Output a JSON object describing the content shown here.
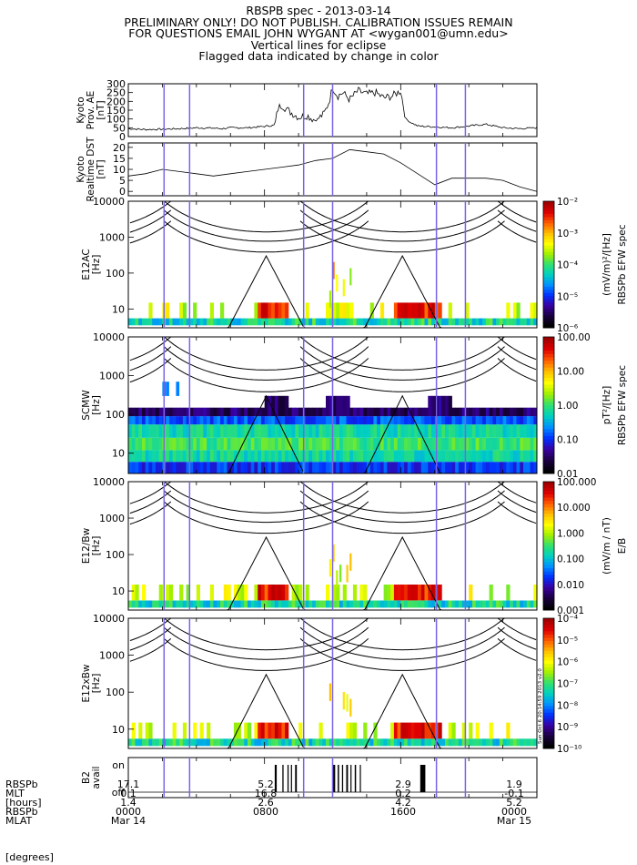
{
  "header": {
    "line1": "RBSPB spec - 2013-03-14",
    "line2": "PRELIMINARY ONLY! DO NOT PUBLISH. CALIBRATION ISSUES REMAIN",
    "line3": "FOR QUESTIONS EMAIL JOHN WYGANT AT <wygan001@umn.edu>",
    "line4": "Vertical lines for eclipse",
    "line5": "Flagged data indicated by change in color"
  },
  "colors": {
    "eclipse_line": "#7a64e6",
    "trace": "#000000",
    "colorbar_stops": [
      "#000000",
      "#1a0040",
      "#3a00a0",
      "#0030ff",
      "#0090ff",
      "#00d0c0",
      "#30e070",
      "#a0f000",
      "#ffff00",
      "#ffc000",
      "#ff6000",
      "#e00000",
      "#a00000"
    ]
  },
  "chart_data": [
    {
      "id": "ae",
      "type": "line",
      "ylabel": "Kyoto\nProv. AE\n[nT]",
      "ylim": [
        0,
        300
      ],
      "yticks": [
        "0",
        "50",
        "100",
        "150",
        "200",
        "250",
        "300"
      ],
      "x_hours": [
        0,
        1,
        2,
        3,
        4,
        5,
        5.5,
        6,
        7,
        8,
        8.6,
        8.8,
        9.0,
        9.5,
        10,
        10.5,
        11,
        11.5,
        11.8,
        12,
        12.3,
        12.6,
        13,
        13.5,
        14,
        14.5,
        15,
        15.5,
        16,
        16.3,
        16.6,
        17,
        18,
        19,
        20,
        21,
        22,
        23,
        24
      ],
      "values": [
        45,
        40,
        42,
        45,
        50,
        48,
        45,
        50,
        50,
        58,
        65,
        160,
        180,
        140,
        110,
        120,
        90,
        130,
        200,
        280,
        230,
        250,
        210,
        260,
        240,
        250,
        220,
        230,
        260,
        100,
        80,
        60,
        55,
        50,
        60,
        70,
        50,
        45,
        50
      ]
    },
    {
      "id": "dst",
      "type": "line",
      "ylabel": "Kyoto\nRealtime DST\n[nT]",
      "ylim": [
        -2,
        22
      ],
      "yticks": [
        "0",
        "5",
        "10",
        "15",
        "20"
      ],
      "x_hours": [
        0,
        1,
        2,
        3,
        4,
        5,
        6,
        7,
        8,
        9,
        10,
        11,
        12,
        13,
        14,
        15,
        16,
        17,
        18,
        19,
        20,
        21,
        22,
        23,
        24
      ],
      "values": [
        7,
        8,
        10,
        9,
        8,
        7,
        8,
        9,
        10,
        11,
        12,
        14,
        15,
        19,
        18,
        17,
        13,
        8,
        3,
        6,
        6,
        6,
        5,
        2,
        0
      ]
    },
    {
      "id": "e12ac",
      "type": "heatmap",
      "ylabel": "E12AC\n[Hz]",
      "yscale": "log",
      "ylim": [
        3,
        10000
      ],
      "yticks": [
        "10",
        "100",
        "1000",
        "10000"
      ],
      "colorbar_label": "(mV/m)²/[Hz]",
      "colorbar_title": "RBSPb EFW spec",
      "colorbar_ticks": [
        "10⁻²",
        "10⁻³",
        "10⁻⁴",
        "10⁻⁵",
        "10⁻⁶"
      ]
    },
    {
      "id": "scmw",
      "type": "heatmap",
      "ylabel": "SCMW\n[Hz]",
      "yscale": "log",
      "ylim": [
        3,
        10000
      ],
      "yticks": [
        "10",
        "100",
        "1000",
        "10000"
      ],
      "colorbar_label": "pT²/[Hz]",
      "colorbar_title": "RBSPb EFW spec",
      "colorbar_ticks": [
        "100.00",
        "10.00",
        "1.00",
        "0.10",
        "0.01"
      ]
    },
    {
      "id": "e12bw",
      "type": "heatmap",
      "ylabel": "E12/Bw\n[Hz]",
      "yscale": "log",
      "ylim": [
        3,
        10000
      ],
      "yticks": [
        "10",
        "100",
        "1000",
        "10000"
      ],
      "colorbar_label": "(mV/m / nT)",
      "colorbar_title": "E/B",
      "colorbar_ticks": [
        "100.000",
        "10.000",
        "1.000",
        "0.100",
        "0.010",
        "0.001"
      ]
    },
    {
      "id": "e12xbw",
      "type": "heatmap",
      "ylabel": "E12xBw\n[Hz]",
      "yscale": "log",
      "ylim": [
        3,
        10000
      ],
      "yticks": [
        "10",
        "100",
        "1000",
        "10000"
      ],
      "colorbar_ticks": [
        "10⁻⁴",
        "10⁻⁵",
        "10⁻⁶",
        "10⁻⁷",
        "10⁻⁸",
        "10⁻⁹",
        "10⁻¹⁰"
      ],
      "side_note": "Sun Oct  6 20:14:59 2013 v2.0"
    },
    {
      "id": "b2",
      "type": "bar",
      "ylabel": "B2\navail",
      "yticks": [
        "on",
        "off"
      ],
      "on_intervals_hours": [
        [
          8.6,
          8.72
        ],
        [
          9.05,
          9.12
        ],
        [
          9.35,
          9.42
        ],
        [
          9.55,
          9.6
        ],
        [
          9.8,
          9.9
        ],
        [
          12.0,
          12.15
        ],
        [
          12.3,
          12.38
        ],
        [
          12.55,
          12.62
        ],
        [
          12.8,
          12.9
        ],
        [
          13.05,
          13.1
        ],
        [
          13.3,
          13.38
        ],
        [
          13.6,
          13.65
        ],
        [
          17.15,
          17.45
        ]
      ]
    }
  ],
  "eclipse_lines_hours": [
    2.1,
    3.6,
    10.3,
    12.0,
    18.1,
    19.8
  ],
  "xaxis": {
    "range_hours": [
      0,
      24
    ],
    "row_labels": [
      "RBSPb",
      "MLT",
      "[hours]",
      "RBSPb",
      "MLAT",
      "[degrees]"
    ],
    "columns": [
      {
        "pos_hours": 0,
        "values": [
          "17.1",
          "0.1",
          "1.4",
          "0000",
          "Mar 14"
        ]
      },
      {
        "pos_hours": 8,
        "values": [
          "5.2",
          "16.8",
          "2.6",
          "0800",
          ""
        ]
      },
      {
        "pos_hours": 16,
        "values": [
          "2.9",
          "0.2",
          "4.2",
          "1600",
          ""
        ]
      },
      {
        "pos_hours": 24,
        "values": [
          "1.9",
          "-0.1",
          "5.2",
          "0000",
          "Mar 15"
        ]
      }
    ]
  }
}
